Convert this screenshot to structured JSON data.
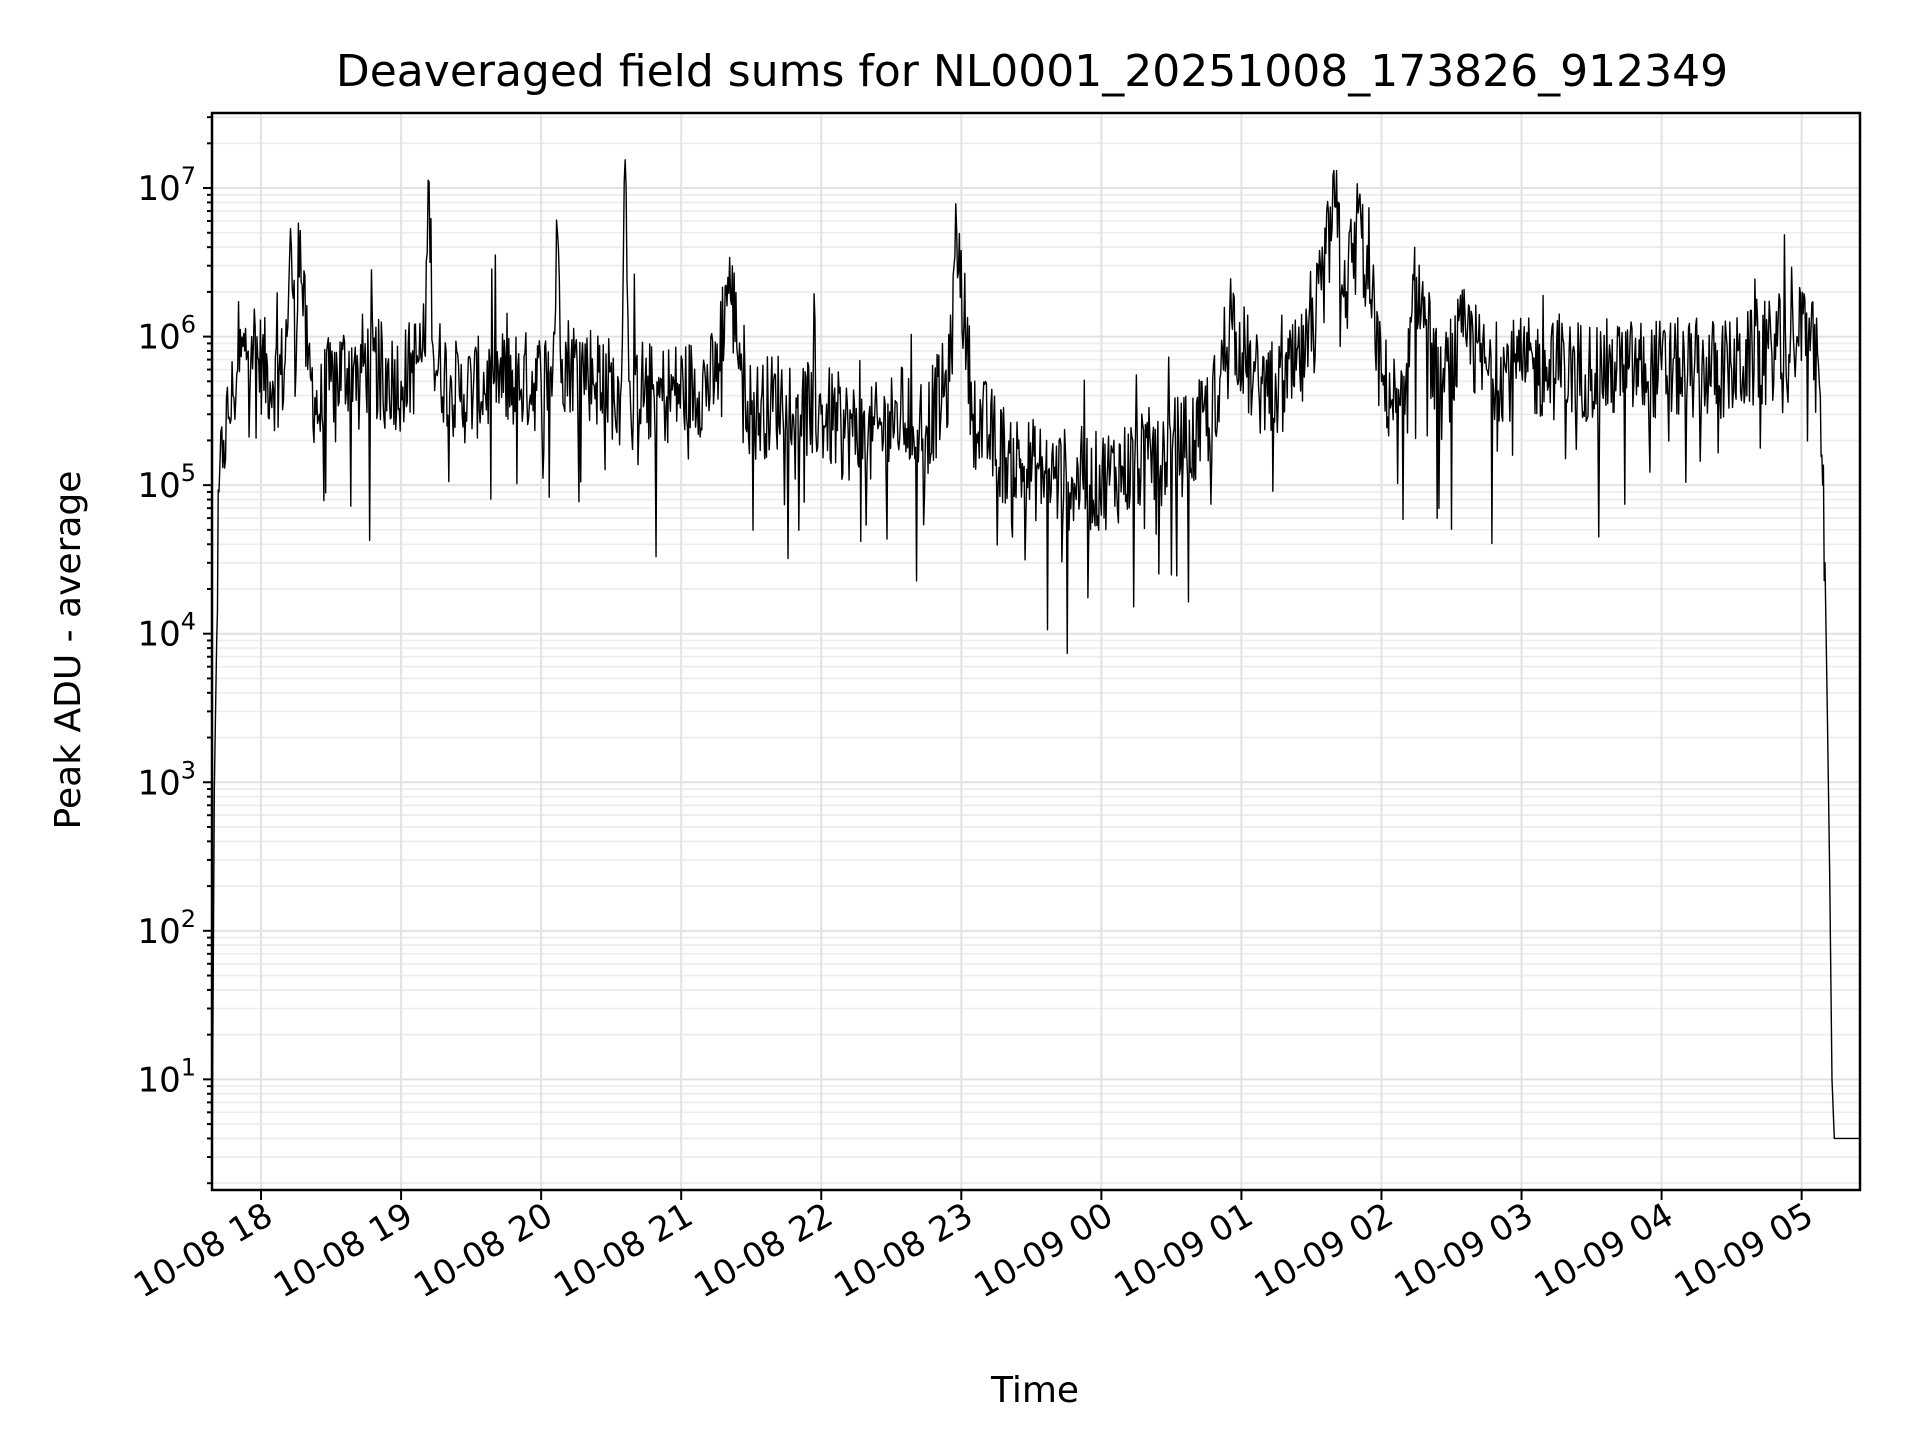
{
  "chart_data": {
    "type": "line",
    "title": "Deaveraged field sums for NL0001_20251008_173826_912349",
    "xlabel": "Time",
    "ylabel": "Peak ADU - average",
    "yscale": "log",
    "ylim": [
      1.8,
      32000000.0
    ],
    "xlim": [
      "2025-10-08 17:39",
      "2025-10-09 05:25"
    ],
    "grid": true,
    "grid_color": "#e2e2e2",
    "line_color": "#000000",
    "x_ticks": [
      "10-08 18",
      "10-08 19",
      "10-08 20",
      "10-08 21",
      "10-08 22",
      "10-08 23",
      "10-09 00",
      "10-09 01",
      "10-09 02",
      "10-09 03",
      "10-09 04",
      "10-09 05"
    ],
    "y_ticks": [
      {
        "base": "10",
        "exp": "1",
        "value": 10
      },
      {
        "base": "10",
        "exp": "2",
        "value": 100
      },
      {
        "base": "10",
        "exp": "3",
        "value": 1000
      },
      {
        "base": "10",
        "exp": "4",
        "value": 10000
      },
      {
        "base": "10",
        "exp": "5",
        "value": 100000
      },
      {
        "base": "10",
        "exp": "6",
        "value": 1000000
      },
      {
        "base": "10",
        "exp": "7",
        "value": 10000000
      }
    ],
    "series": [
      {
        "x": [
          "2025-10-08 17:39",
          "2025-10-08 17:40",
          "2025-10-08 17:41",
          "2025-10-08 17:42",
          "2025-10-08 17:44",
          "2025-10-08 17:46",
          "2025-10-08 17:48",
          "2025-10-08 17:50",
          "2025-10-08 17:53",
          "2025-10-08 17:56",
          "2025-10-08 17:59",
          "2025-10-08 18:05",
          "2025-10-08 18:10",
          "2025-10-08 18:13",
          "2025-10-08 18:15",
          "2025-10-08 18:16",
          "2025-10-08 18:20",
          "2025-10-08 18:25",
          "2025-10-08 18:30",
          "2025-10-08 18:40",
          "2025-10-08 19:00",
          "2025-10-08 19:10",
          "2025-10-08 19:12",
          "2025-10-08 19:14",
          "2025-10-08 19:25",
          "2025-10-08 19:40",
          "2025-10-08 20:00",
          "2025-10-08 20:05",
          "2025-10-08 20:07",
          "2025-10-08 20:09",
          "2025-10-08 20:20",
          "2025-10-08 20:34",
          "2025-10-08 20:36",
          "2025-10-08 20:38",
          "2025-10-08 20:50",
          "2025-10-08 21:15",
          "2025-10-08 21:20",
          "2025-10-08 21:30",
          "2025-10-08 21:45",
          "2025-10-08 22:00",
          "2025-10-08 22:20",
          "2025-10-08 22:34",
          "2025-10-08 22:45",
          "2025-10-08 22:55",
          "2025-10-08 22:58",
          "2025-10-08 23:05",
          "2025-10-08 23:20",
          "2025-10-08 23:35",
          "2025-10-08 23:55",
          "2025-10-09 00:20",
          "2025-10-09 00:40",
          "2025-10-09 00:50",
          "2025-10-09 00:55",
          "2025-10-09 01:05",
          "2025-10-09 01:15",
          "2025-10-09 01:30",
          "2025-10-09 01:40",
          "2025-10-09 01:45",
          "2025-10-09 01:50",
          "2025-10-09 02:00",
          "2025-10-09 02:10",
          "2025-10-09 02:15",
          "2025-10-09 02:25",
          "2025-10-09 02:35",
          "2025-10-09 02:45",
          "2025-10-09 03:00",
          "2025-10-09 03:30",
          "2025-10-09 04:00",
          "2025-10-09 04:30",
          "2025-10-09 04:58",
          "2025-10-09 05:04",
          "2025-10-09 05:08",
          "2025-10-09 05:09",
          "2025-10-09 05:10",
          "2025-10-09 05:11",
          "2025-10-09 05:12",
          "2025-10-09 05:13",
          "2025-10-09 05:14",
          "2025-10-09 05:15",
          "2025-10-09 05:25"
        ],
        "y": [
          2,
          900,
          9000,
          90000,
          200000,
          280000,
          400000,
          600000,
          800000,
          1000000,
          700000,
          500000,
          600000,
          4000000,
          600000,
          5800000,
          600000,
          300000,
          500000,
          700000,
          500000,
          800000,
          11000000,
          700000,
          400000,
          500000,
          500000,
          600000,
          5000000,
          700000,
          600000,
          400000,
          15500000,
          500000,
          400000,
          500000,
          2500000,
          300000,
          400000,
          300000,
          200000,
          300000,
          250000,
          500000,
          5300000,
          300000,
          150000,
          120000,
          100000,
          150000,
          200000,
          400000,
          1500000,
          500000,
          400000,
          800000,
          7500000,
          2000000,
          6800000,
          500000,
          300000,
          2500000,
          400000,
          1000000,
          600000,
          600000,
          600000,
          600000,
          600000,
          1000000,
          1100000,
          400000,
          100000,
          30000,
          3000,
          250,
          10,
          4,
          4,
          4
        ]
      }
    ]
  }
}
